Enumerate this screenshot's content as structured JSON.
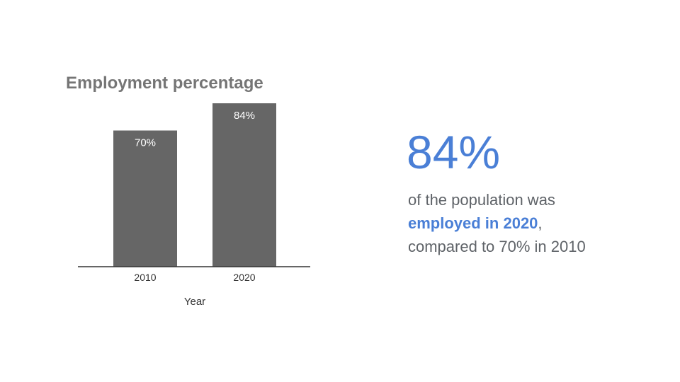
{
  "chart_data": {
    "type": "bar",
    "title": "Employment percentage",
    "xlabel": "Year",
    "ylabel": "",
    "categories": [
      "2010",
      "2020"
    ],
    "values": [
      70,
      84
    ],
    "data_labels": [
      "70%",
      "84%"
    ],
    "ylim": [
      0,
      100
    ],
    "grid": false,
    "bar_color": "#666666"
  },
  "stat": {
    "value": "84%",
    "line1": "of the population was",
    "line2_highlight": "employed in 2020",
    "line2_suffix": ",",
    "line3": "compared to 70% in 2010",
    "accent_color": "#4a7fd6"
  }
}
